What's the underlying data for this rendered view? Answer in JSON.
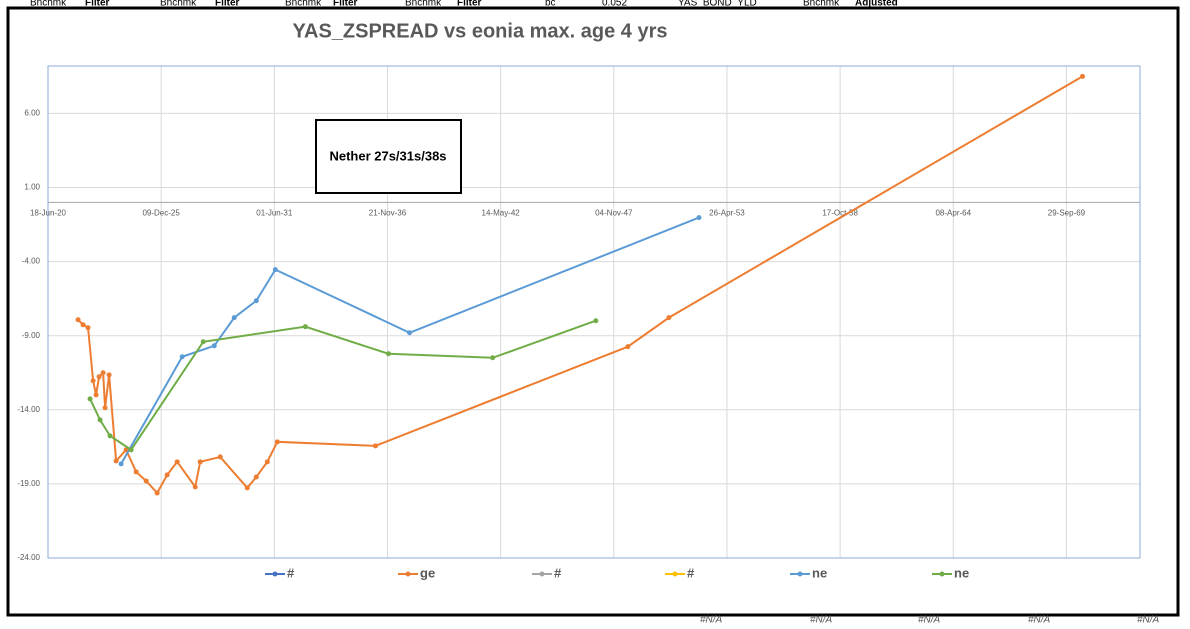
{
  "sheet": {
    "header_cells": [
      "Bnchmk",
      "Filter",
      "Bnchmk",
      "Filter",
      "Bnchmk",
      "Filter",
      "Bnchmk",
      "Filter",
      "bc",
      "0.052",
      "YAS_BOND_YLD",
      "Bnchmk",
      "Adjusted"
    ],
    "footer_cells": [
      "#N/A",
      "#N/A",
      "#N/A",
      "#N/A",
      "#N/A"
    ]
  },
  "chart_data": {
    "type": "line",
    "title": "YAS_ZSPREAD vs eonia max. age 4 yrs",
    "annotation": "Nether 27s/31s/38s",
    "xlim": [
      44000,
      63300
    ],
    "xticks": [
      {
        "value": 44000,
        "label": "18-Jun-20"
      },
      {
        "value": 46000,
        "label": "09-Dec-25"
      },
      {
        "value": 48000,
        "label": "01-Jun-31"
      },
      {
        "value": 50000,
        "label": "21-Nov-36"
      },
      {
        "value": 52000,
        "label": "14-May-42"
      },
      {
        "value": 54000,
        "label": "04-Nov-47"
      },
      {
        "value": 56000,
        "label": "26-Apr-53"
      },
      {
        "value": 58000,
        "label": "17-Oct-58"
      },
      {
        "value": 60000,
        "label": "08-Apr-64"
      },
      {
        "value": 62000,
        "label": "29-Sep-69"
      }
    ],
    "ylim": [
      -24,
      9.2
    ],
    "yticks": [
      {
        "value": -24,
        "label": "-24.00"
      },
      {
        "value": -19,
        "label": "-19.00"
      },
      {
        "value": -14,
        "label": "-14.00"
      },
      {
        "value": -9,
        "label": "-9.00"
      },
      {
        "value": -4,
        "label": "-4.00"
      },
      {
        "value": 1,
        "label": "1.00"
      },
      {
        "value": 6,
        "label": "6.00"
      }
    ],
    "grid": true,
    "legend": "bottom",
    "series": [
      {
        "name": "#",
        "color": "#4472c4",
        "x": [],
        "values": []
      },
      {
        "name": "ge",
        "color": "#ed7d31",
        "x": [
          44531,
          44620,
          44708,
          44797,
          44850,
          44903,
          44974,
          45009,
          45080,
          45204,
          45381,
          45558,
          45735,
          45929,
          46106,
          46283,
          46602,
          46690,
          47044,
          47522,
          47682,
          47876,
          48053,
          49788,
          54248,
          54974,
          62284
        ],
        "values": [
          -7.92,
          -8.26,
          -8.46,
          -12.04,
          -12.99,
          -11.77,
          -11.5,
          -13.86,
          -11.64,
          -17.45,
          -16.7,
          -18.19,
          -18.8,
          -19.61,
          -18.39,
          -17.51,
          -19.2,
          -17.51,
          -17.18,
          -19.27,
          -18.53,
          -17.51,
          -16.16,
          -16.43,
          -9.74,
          -7.78,
          8.5
        ]
      },
      {
        "name": "#",
        "color": "#a5a5a5",
        "x": [],
        "values": []
      },
      {
        "name": "#",
        "color": "#ffc000",
        "x": [],
        "values": []
      },
      {
        "name": "ne",
        "color": "#5b9bd5",
        "x": [
          45292,
          46372,
          46938,
          47292,
          47682,
          48018,
          50390,
          55505
        ],
        "values": [
          -17.65,
          -10.42,
          -9.68,
          -7.78,
          -6.64,
          -4.54,
          -8.8,
          -1.03
        ]
      },
      {
        "name": "ne",
        "color": "#70ad47",
        "x": [
          44743,
          44920,
          45097,
          45469,
          46744,
          48549,
          50018,
          51859,
          53682
        ],
        "values": [
          -13.26,
          -14.68,
          -15.76,
          -16.7,
          -9.41,
          -8.39,
          -10.22,
          -10.49,
          -7.99
        ]
      }
    ]
  }
}
